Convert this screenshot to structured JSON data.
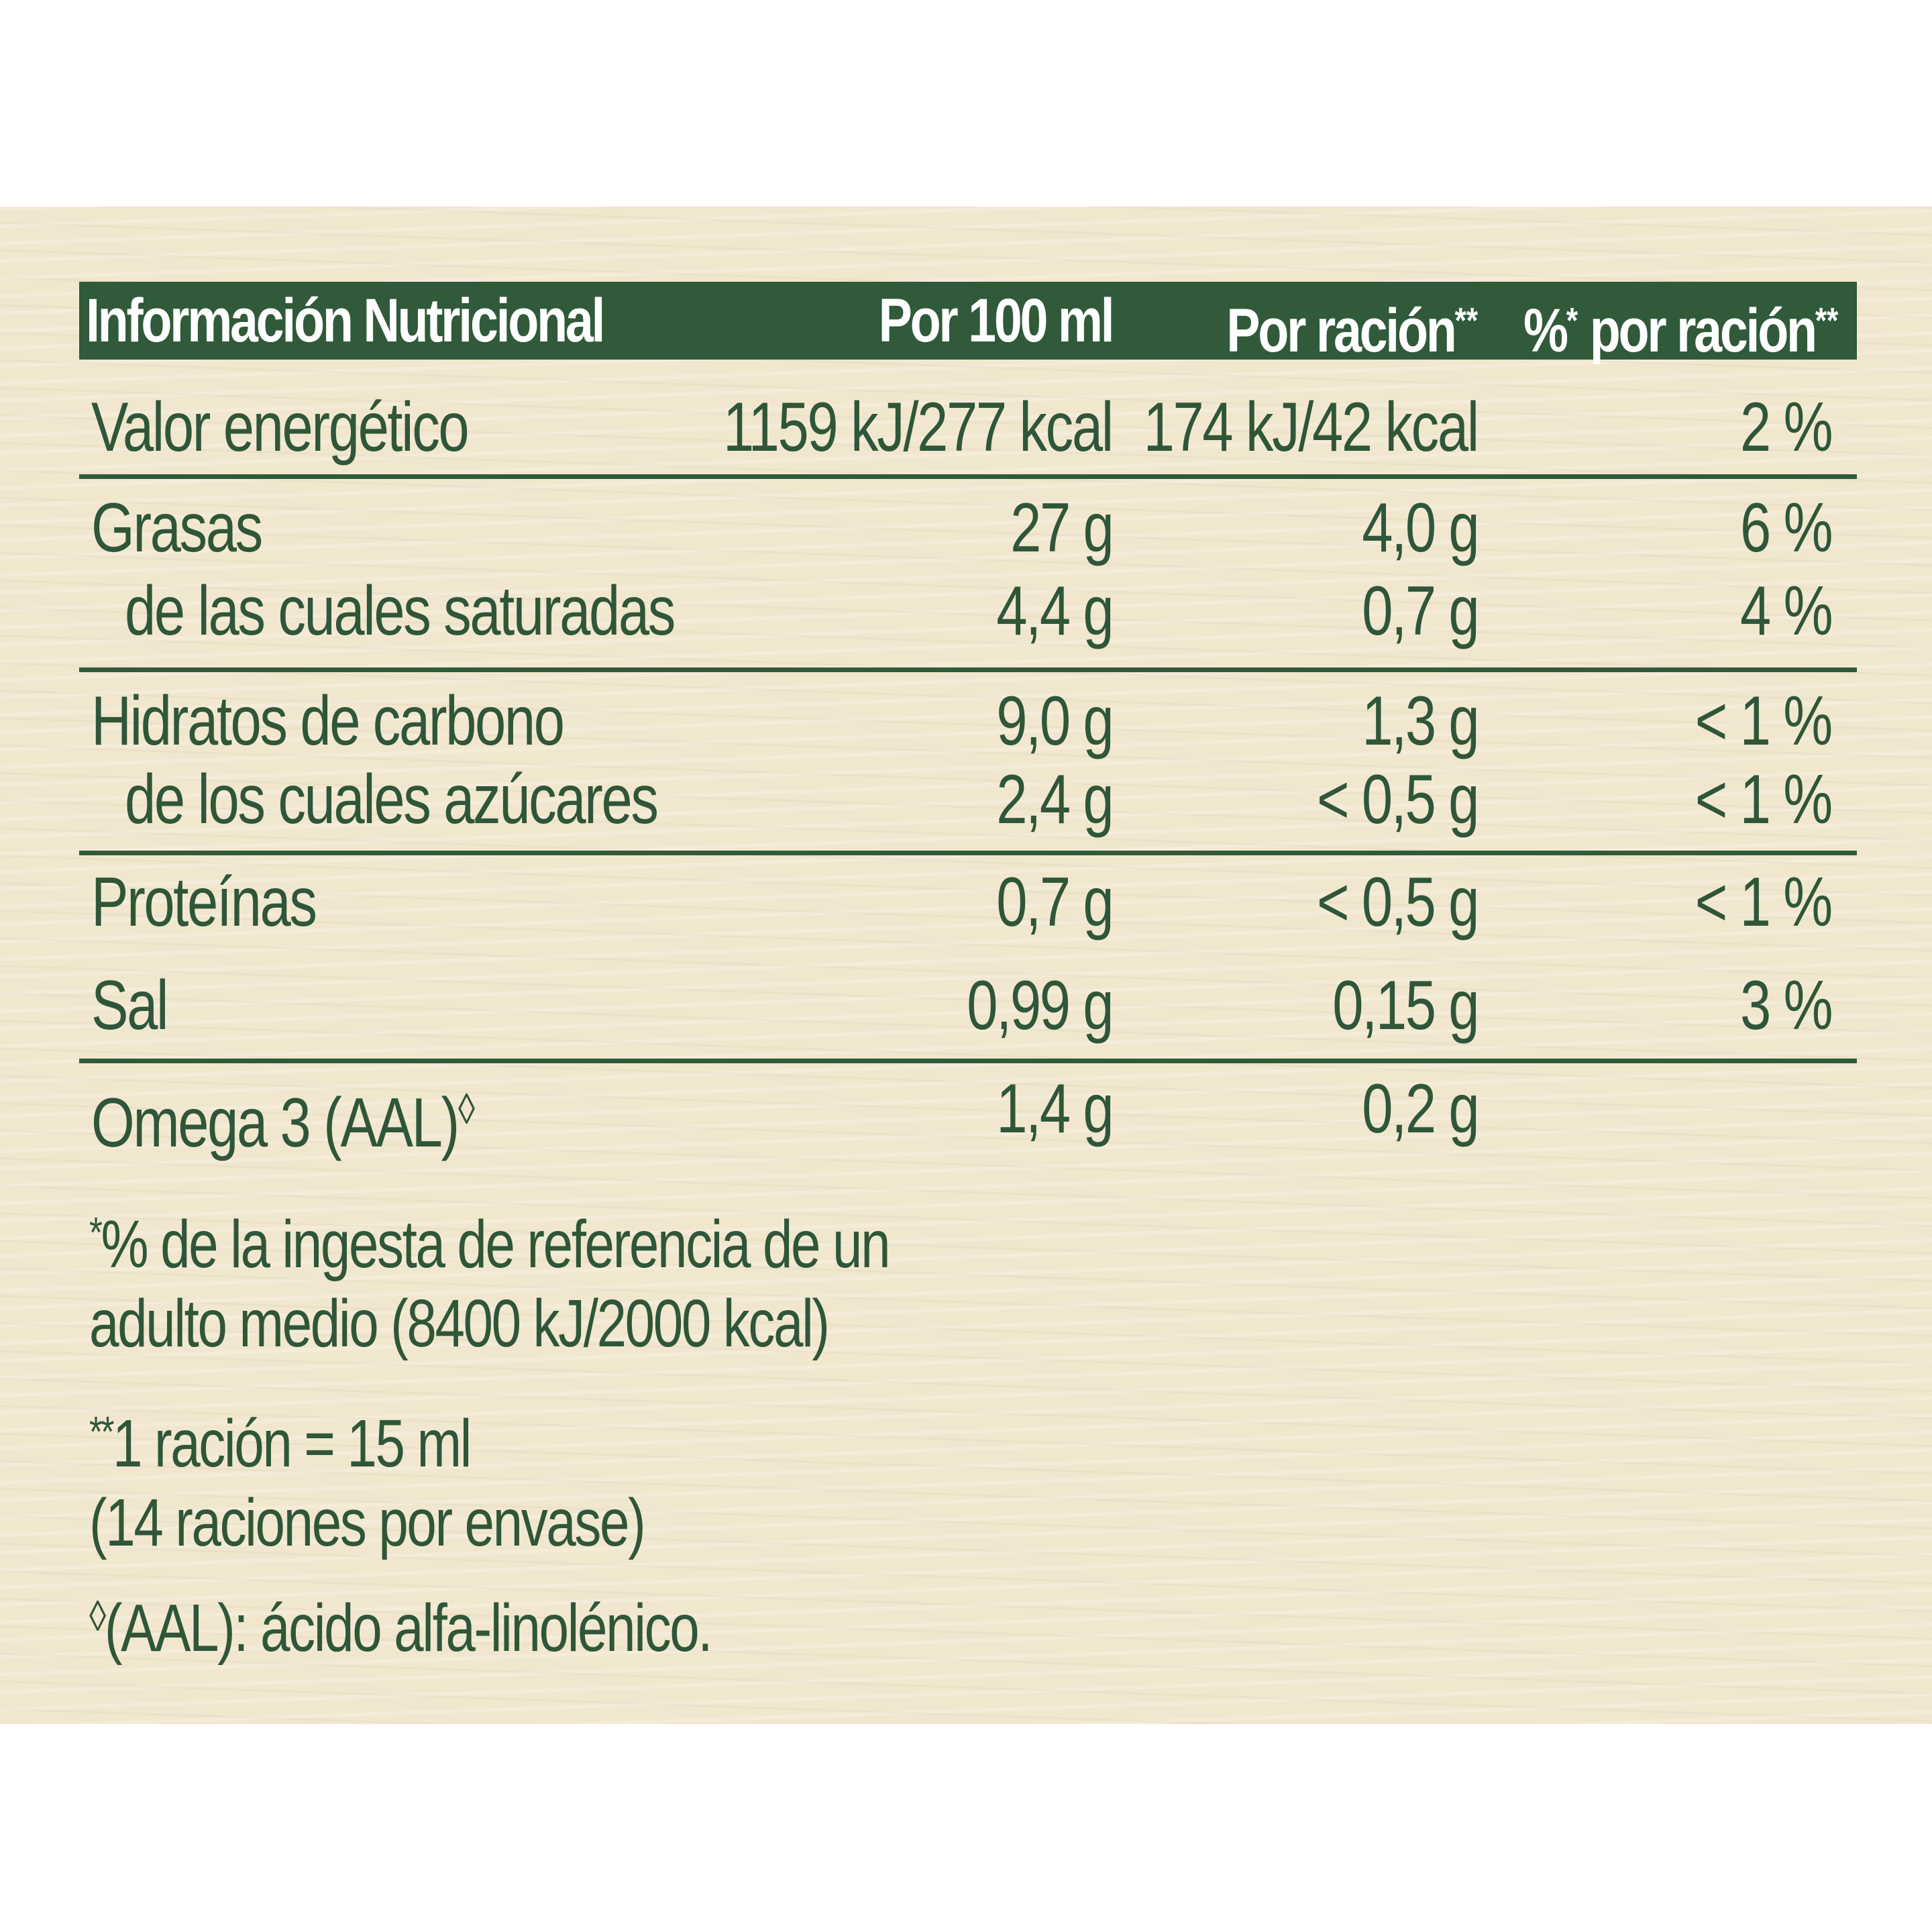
{
  "header": {
    "col0": "Información Nutricional",
    "col1": "Por 100 ml",
    "col2": "Por ración",
    "col2_mark": "**",
    "col3_pct": "%",
    "col3_mark1": "*",
    "col3": " por ración",
    "col3_mark2": "**"
  },
  "rows": [
    {
      "label": "Valor energético",
      "per100": "1159 kJ/277 kcal",
      "perServing": "174 kJ/42 kcal",
      "pct": "2 %"
    },
    {
      "label": "Grasas",
      "per100": "27 g",
      "perServing": "4,0 g",
      "pct": "6 %"
    },
    {
      "label": "de las cuales saturadas",
      "per100": "4,4 g",
      "perServing": "0,7 g",
      "pct": "4 %"
    },
    {
      "label": "Hidratos de carbono",
      "per100": "9,0 g",
      "perServing": "1,3 g",
      "pct": "< 1 %"
    },
    {
      "label": "de los cuales azúcares",
      "per100": "2,4 g",
      "perServing": "< 0,5 g",
      "pct": "< 1 %"
    },
    {
      "label": "Proteínas",
      "per100": "0,7 g",
      "perServing": "< 0,5 g",
      "pct": "< 1 %"
    },
    {
      "label": "Sal",
      "per100": "0,99 g",
      "perServing": "0,15 g",
      "pct": "3 %"
    },
    {
      "label": "Omega 3 (AAL)",
      "label_mark": "◊",
      "per100": "1,4 g",
      "perServing": "0,2 g",
      "pct": ""
    }
  ],
  "notes": {
    "ri_mark": "*",
    "ri_line1": "% de la ingesta de referencia de un",
    "ri_line2": "adulto medio (8400 kJ/2000 kcal)",
    "serving_mark": "**",
    "serving_line1": "1 ración = 15 ml",
    "serving_line2": "(14 raciones por envase)",
    "aal_mark": "◊",
    "aal_text": "(AAL): ácido alfa-linolénico."
  },
  "colors": {
    "green": "#305a3a",
    "text": "#2f5638",
    "background": "#f1e7cf"
  }
}
